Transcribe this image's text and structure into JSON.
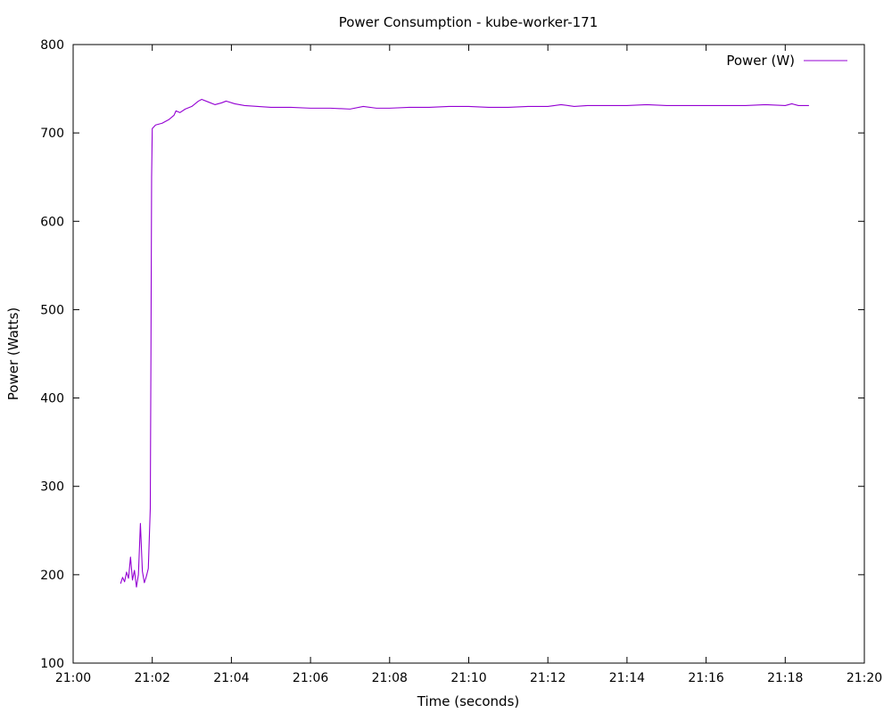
{
  "chart_data": {
    "type": "line",
    "title": "Power Consumption - kube-worker-171",
    "xlabel": "Time (seconds)",
    "ylabel": "Power (Watts)",
    "xlim": [
      "21:00",
      "21:20"
    ],
    "ylim": [
      100,
      800
    ],
    "x_ticks": [
      "21:00",
      "21:02",
      "21:04",
      "21:06",
      "21:08",
      "21:10",
      "21:12",
      "21:14",
      "21:16",
      "21:18",
      "21:20"
    ],
    "y_ticks": [
      100,
      200,
      300,
      400,
      500,
      600,
      700,
      800
    ],
    "grid": false,
    "legend_position": "top-right",
    "series": [
      {
        "name": "Power (W)",
        "color": "#9400d3",
        "points": [
          [
            "21:01:12",
            190
          ],
          [
            "21:01:15",
            197
          ],
          [
            "21:01:18",
            192
          ],
          [
            "21:01:21",
            203
          ],
          [
            "21:01:24",
            196
          ],
          [
            "21:01:27",
            220
          ],
          [
            "21:01:30",
            194
          ],
          [
            "21:01:33",
            205
          ],
          [
            "21:01:36",
            186
          ],
          [
            "21:01:39",
            200
          ],
          [
            "21:01:42",
            258
          ],
          [
            "21:01:45",
            204
          ],
          [
            "21:01:48",
            191
          ],
          [
            "21:01:51",
            198
          ],
          [
            "21:01:54",
            207
          ],
          [
            "21:01:57",
            275
          ],
          [
            "21:01:58",
            450
          ],
          [
            "21:01:59",
            650
          ],
          [
            "21:02:00",
            705
          ],
          [
            "21:02:05",
            709
          ],
          [
            "21:02:15",
            711
          ],
          [
            "21:02:25",
            715
          ],
          [
            "21:02:33",
            720
          ],
          [
            "21:02:36",
            725
          ],
          [
            "21:02:42",
            723
          ],
          [
            "21:02:50",
            727
          ],
          [
            "21:03:00",
            730
          ],
          [
            "21:03:10",
            736
          ],
          [
            "21:03:15",
            738
          ],
          [
            "21:03:25",
            735
          ],
          [
            "21:03:35",
            732
          ],
          [
            "21:03:45",
            734
          ],
          [
            "21:03:52",
            736
          ],
          [
            "21:04:05",
            733
          ],
          [
            "21:04:20",
            731
          ],
          [
            "21:04:40",
            730
          ],
          [
            "21:05:00",
            729
          ],
          [
            "21:05:30",
            729
          ],
          [
            "21:06:00",
            728
          ],
          [
            "21:06:30",
            728
          ],
          [
            "21:07:00",
            727
          ],
          [
            "21:07:20",
            730
          ],
          [
            "21:07:40",
            728
          ],
          [
            "21:08:00",
            728
          ],
          [
            "21:08:30",
            729
          ],
          [
            "21:09:00",
            729
          ],
          [
            "21:09:30",
            730
          ],
          [
            "21:10:00",
            730
          ],
          [
            "21:10:30",
            729
          ],
          [
            "21:11:00",
            729
          ],
          [
            "21:11:30",
            730
          ],
          [
            "21:12:00",
            730
          ],
          [
            "21:12:20",
            732
          ],
          [
            "21:12:40",
            730
          ],
          [
            "21:13:00",
            731
          ],
          [
            "21:13:30",
            731
          ],
          [
            "21:14:00",
            731
          ],
          [
            "21:14:30",
            732
          ],
          [
            "21:15:00",
            731
          ],
          [
            "21:15:30",
            731
          ],
          [
            "21:16:00",
            731
          ],
          [
            "21:16:30",
            731
          ],
          [
            "21:17:00",
            731
          ],
          [
            "21:17:30",
            732
          ],
          [
            "21:18:00",
            731
          ],
          [
            "21:18:10",
            733
          ],
          [
            "21:18:20",
            731
          ],
          [
            "21:18:36",
            731
          ]
        ]
      }
    ]
  }
}
